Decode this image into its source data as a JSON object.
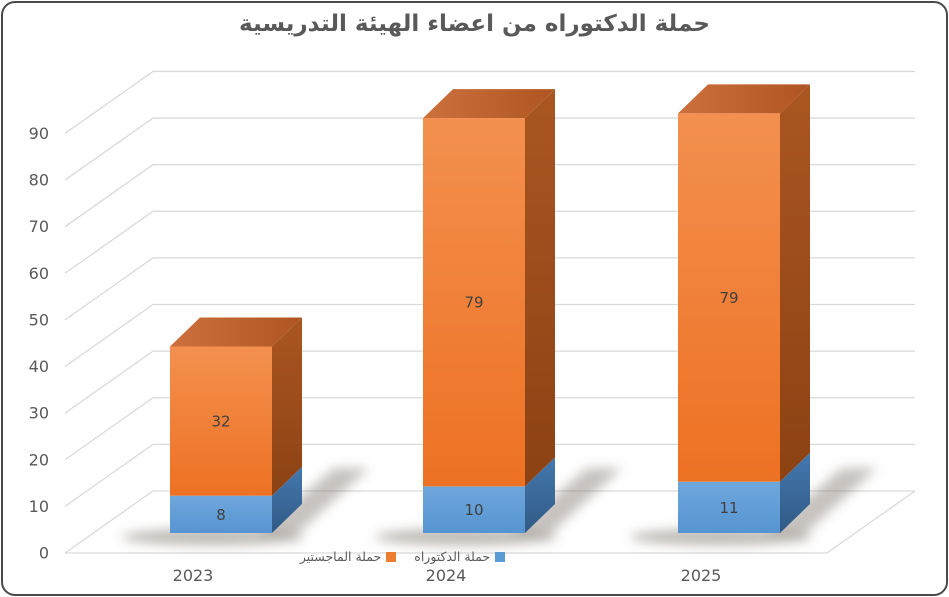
{
  "title": "حملة الدكتوراه من اعضاء الهيئة التدريسية",
  "legend": {
    "items": [
      {
        "label": "حملة الماجستير",
        "color": "#ED7D31",
        "series_key": "masters"
      },
      {
        "label": "حملة الدكتوراه",
        "color": "#5B9BD5",
        "series_key": "phd"
      }
    ]
  },
  "colors": {
    "text": "#595959",
    "data_label": "#3F3F3F",
    "gridline": "#D9D9D9",
    "frame": "#4A4A4A",
    "phd_front": [
      "#6FA7DC",
      "#5694D1"
    ],
    "phd_side": [
      "#4478AF",
      "#315A85"
    ],
    "masters_front": [
      "#F3904F",
      "#ED7123"
    ],
    "masters_side": [
      "#AA5621",
      "#8C4214"
    ],
    "masters_top": [
      "#CC713E",
      "#AF5522"
    ]
  },
  "chart_data": {
    "type": "bar",
    "variant": "3d-stacked-column",
    "title": "حملة الدكتوراه من اعضاء الهيئة التدريسية",
    "categories": [
      "2023",
      "2024",
      "2025"
    ],
    "series": [
      {
        "key": "phd",
        "name": "حملة الدكتوراه",
        "color": "#5B9BD5",
        "values": [
          8,
          10,
          11
        ]
      },
      {
        "key": "masters",
        "name": "حملة الماجستير",
        "color": "#ED7D31",
        "values": [
          32,
          79,
          79
        ]
      }
    ],
    "stacked": true,
    "data_labels": true,
    "yticks": [
      0,
      10,
      20,
      30,
      40,
      50,
      60,
      70,
      80,
      90
    ],
    "ylim": [
      0,
      90
    ],
    "xlabel": "",
    "ylabel": "",
    "grid": true,
    "legend_position": "bottom-center"
  }
}
